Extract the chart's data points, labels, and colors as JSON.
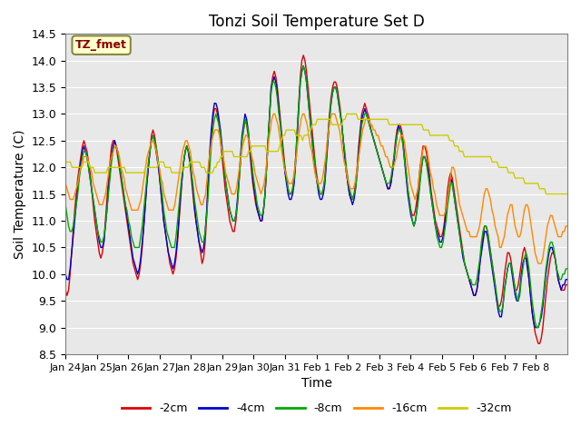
{
  "title": "Tonzi Soil Temperature Set D",
  "xlabel": "Time",
  "ylabel": "Soil Temperature (C)",
  "ylim": [
    8.5,
    14.5
  ],
  "yticks": [
    8.5,
    9.0,
    9.5,
    10.0,
    10.5,
    11.0,
    11.5,
    12.0,
    12.5,
    13.0,
    13.5,
    14.0,
    14.5
  ],
  "xtick_labels": [
    "Jan 24",
    "Jan 25",
    "Jan 26",
    "Jan 27",
    "Jan 28",
    "Jan 29",
    "Jan 30",
    "Jan 31",
    "Feb 1",
    "Feb 2",
    "Feb 3",
    "Feb 4",
    "Feb 5",
    "Feb 6",
    "Feb 7",
    "Feb 8"
  ],
  "line_colors": [
    "#dd0000",
    "#0000cc",
    "#00aa00",
    "#ff8800",
    "#cccc00"
  ],
  "line_labels": [
    "-2cm",
    "-4cm",
    "-8cm",
    "-16cm",
    "-32cm"
  ],
  "annotation_text": "TZ_fmet",
  "annotation_bg": "#ffffcc",
  "annotation_border": "#888844",
  "bg_color": "#e8e8e8",
  "figsize": [
    6.4,
    4.8
  ],
  "dpi": 100,
  "series_2cm": [
    9.7,
    9.6,
    9.7,
    10.0,
    10.4,
    10.8,
    11.2,
    11.5,
    11.8,
    12.0,
    12.2,
    12.4,
    12.5,
    12.4,
    12.3,
    12.1,
    11.9,
    11.6,
    11.3,
    11.0,
    10.8,
    10.6,
    10.4,
    10.3,
    10.4,
    10.6,
    11.0,
    11.4,
    11.8,
    12.1,
    12.4,
    12.5,
    12.5,
    12.4,
    12.2,
    12.0,
    11.8,
    11.6,
    11.4,
    11.2,
    11.0,
    10.8,
    10.6,
    10.4,
    10.2,
    10.1,
    10.0,
    9.9,
    10.0,
    10.2,
    10.5,
    10.9,
    11.3,
    11.7,
    12.0,
    12.3,
    12.6,
    12.7,
    12.6,
    12.4,
    12.2,
    11.9,
    11.6,
    11.3,
    11.0,
    10.8,
    10.6,
    10.4,
    10.2,
    10.1,
    10.0,
    10.1,
    10.3,
    10.6,
    11.0,
    11.4,
    11.8,
    12.1,
    12.3,
    12.4,
    12.3,
    12.1,
    11.8,
    11.5,
    11.2,
    11.0,
    10.8,
    10.6,
    10.4,
    10.2,
    10.3,
    10.6,
    11.1,
    11.7,
    12.2,
    12.6,
    12.9,
    13.1,
    13.1,
    13.0,
    12.8,
    12.5,
    12.2,
    11.9,
    11.6,
    11.4,
    11.2,
    11.0,
    10.9,
    10.8,
    10.8,
    11.0,
    11.3,
    11.7,
    12.1,
    12.5,
    12.7,
    12.9,
    12.8,
    12.6,
    12.3,
    12.0,
    11.7,
    11.5,
    11.3,
    11.2,
    11.1,
    11.0,
    11.0,
    11.2,
    11.5,
    12.0,
    12.5,
    13.0,
    13.5,
    13.7,
    13.8,
    13.7,
    13.5,
    13.2,
    12.9,
    12.6,
    12.3,
    12.0,
    11.8,
    11.6,
    11.5,
    11.5,
    11.6,
    11.8,
    12.2,
    12.7,
    13.2,
    13.7,
    14.0,
    14.1,
    14.0,
    13.8,
    13.5,
    13.2,
    12.9,
    12.6,
    12.3,
    12.0,
    11.8,
    11.6,
    11.5,
    11.5,
    11.6,
    11.8,
    12.2,
    12.6,
    13.0,
    13.3,
    13.5,
    13.6,
    13.6,
    13.5,
    13.3,
    13.1,
    12.8,
    12.5,
    12.2,
    11.9,
    11.7,
    11.5,
    11.4,
    11.4,
    11.5,
    11.7,
    12.0,
    12.4,
    12.7,
    13.0,
    13.1,
    13.2,
    13.1,
    13.0,
    12.9,
    12.7,
    12.6,
    12.5,
    12.4,
    12.3,
    12.2,
    12.1,
    12.0,
    11.9,
    11.8,
    11.7,
    11.6,
    11.6,
    11.7,
    11.9,
    12.2,
    12.5,
    12.7,
    12.8,
    12.8,
    12.7,
    12.5,
    12.2,
    11.9,
    11.6,
    11.4,
    11.2,
    11.1,
    11.1,
    11.2,
    11.4,
    11.7,
    12.0,
    12.2,
    12.4,
    12.4,
    12.3,
    12.1,
    11.9,
    11.6,
    11.4,
    11.2,
    11.0,
    10.9,
    10.8,
    10.7,
    10.7,
    10.8,
    11.0,
    11.3,
    11.6,
    11.8,
    11.9,
    11.8,
    11.6,
    11.4,
    11.2,
    11.0,
    10.8,
    10.6,
    10.4,
    10.2,
    10.1,
    10.0,
    9.9,
    9.8,
    9.7,
    9.6,
    9.6,
    9.7,
    9.9,
    10.2,
    10.5,
    10.7,
    10.9,
    10.9,
    10.8,
    10.6,
    10.4,
    10.2,
    10.0,
    9.8,
    9.5,
    9.4,
    9.4,
    9.5,
    9.7,
    10.0,
    10.2,
    10.4,
    10.4,
    10.3,
    10.1,
    9.9,
    9.7,
    9.7,
    9.8,
    10.0,
    10.2,
    10.4,
    10.5,
    10.4,
    10.2,
    9.9,
    9.6,
    9.3,
    9.1,
    8.9,
    8.8,
    8.7,
    8.7,
    8.8,
    9.0,
    9.3,
    9.6,
    9.9,
    10.1,
    10.3,
    10.4,
    10.4,
    10.3,
    10.1,
    9.9,
    9.8,
    9.7,
    9.7,
    9.7,
    9.8,
    9.8
  ],
  "series_4cm": [
    10.0,
    9.9,
    9.9,
    10.1,
    10.4,
    10.7,
    11.0,
    11.3,
    11.6,
    11.9,
    12.1,
    12.3,
    12.4,
    12.3,
    12.2,
    12.0,
    11.8,
    11.6,
    11.4,
    11.2,
    11.0,
    10.8,
    10.6,
    10.5,
    10.5,
    10.6,
    10.9,
    11.2,
    11.6,
    11.9,
    12.2,
    12.4,
    12.5,
    12.4,
    12.3,
    12.1,
    11.9,
    11.7,
    11.5,
    11.3,
    11.1,
    10.9,
    10.7,
    10.5,
    10.3,
    10.2,
    10.1,
    10.0,
    10.1,
    10.3,
    10.6,
    10.9,
    11.3,
    11.7,
    12.0,
    12.3,
    12.5,
    12.6,
    12.5,
    12.3,
    12.1,
    11.9,
    11.6,
    11.3,
    11.0,
    10.8,
    10.6,
    10.4,
    10.3,
    10.2,
    10.1,
    10.2,
    10.4,
    10.7,
    11.1,
    11.5,
    11.8,
    12.1,
    12.3,
    12.4,
    12.3,
    12.1,
    11.9,
    11.6,
    11.3,
    11.0,
    10.8,
    10.6,
    10.5,
    10.4,
    10.5,
    10.8,
    11.2,
    11.8,
    12.3,
    12.7,
    13.0,
    13.2,
    13.2,
    13.1,
    12.9,
    12.7,
    12.4,
    12.1,
    11.8,
    11.6,
    11.4,
    11.2,
    11.1,
    11.0,
    11.0,
    11.1,
    11.4,
    11.8,
    12.2,
    12.6,
    12.8,
    13.0,
    12.9,
    12.7,
    12.4,
    12.1,
    11.8,
    11.6,
    11.4,
    11.2,
    11.1,
    11.0,
    11.0,
    11.2,
    11.5,
    12.0,
    12.5,
    13.0,
    13.5,
    13.6,
    13.7,
    13.6,
    13.4,
    13.1,
    12.8,
    12.5,
    12.2,
    11.9,
    11.7,
    11.5,
    11.4,
    11.4,
    11.5,
    11.7,
    12.1,
    12.6,
    13.1,
    13.6,
    13.8,
    13.9,
    13.8,
    13.6,
    13.3,
    13.0,
    12.7,
    12.4,
    12.1,
    11.9,
    11.7,
    11.5,
    11.4,
    11.4,
    11.5,
    11.7,
    12.1,
    12.5,
    12.9,
    13.2,
    13.4,
    13.5,
    13.5,
    13.4,
    13.2,
    13.0,
    12.8,
    12.5,
    12.2,
    11.9,
    11.7,
    11.5,
    11.4,
    11.3,
    11.4,
    11.6,
    11.9,
    12.3,
    12.6,
    12.9,
    13.0,
    13.1,
    13.0,
    12.9,
    12.8,
    12.7,
    12.6,
    12.5,
    12.4,
    12.3,
    12.2,
    12.1,
    12.0,
    11.9,
    11.8,
    11.7,
    11.6,
    11.6,
    11.7,
    11.9,
    12.1,
    12.4,
    12.6,
    12.8,
    12.7,
    12.6,
    12.4,
    12.1,
    11.8,
    11.5,
    11.3,
    11.1,
    11.0,
    10.9,
    11.0,
    11.2,
    11.5,
    11.8,
    12.0,
    12.2,
    12.2,
    12.1,
    12.0,
    11.8,
    11.5,
    11.3,
    11.1,
    10.9,
    10.8,
    10.7,
    10.6,
    10.6,
    10.7,
    10.9,
    11.2,
    11.4,
    11.6,
    11.8,
    11.7,
    11.5,
    11.3,
    11.1,
    10.9,
    10.7,
    10.5,
    10.3,
    10.2,
    10.1,
    10.0,
    9.9,
    9.8,
    9.7,
    9.6,
    9.6,
    9.7,
    9.9,
    10.2,
    10.4,
    10.6,
    10.8,
    10.8,
    10.7,
    10.5,
    10.3,
    10.1,
    9.9,
    9.7,
    9.5,
    9.3,
    9.2,
    9.2,
    9.4,
    9.7,
    9.9,
    10.1,
    10.2,
    10.2,
    10.0,
    9.8,
    9.6,
    9.5,
    9.5,
    9.7,
    10.0,
    10.2,
    10.3,
    10.3,
    10.1,
    9.9,
    9.6,
    9.3,
    9.1,
    9.0,
    9.0,
    9.0,
    9.1,
    9.2,
    9.4,
    9.7,
    10.0,
    10.2,
    10.4,
    10.5,
    10.5,
    10.4,
    10.3,
    10.1,
    9.9,
    9.8,
    9.7,
    9.8,
    9.8,
    9.9,
    9.9
  ],
  "series_8cm": [
    11.3,
    11.1,
    10.9,
    10.8,
    10.8,
    10.9,
    11.1,
    11.3,
    11.5,
    11.8,
    12.0,
    12.2,
    12.3,
    12.3,
    12.2,
    12.0,
    11.8,
    11.6,
    11.4,
    11.2,
    11.0,
    10.8,
    10.7,
    10.6,
    10.6,
    10.7,
    10.9,
    11.2,
    11.5,
    11.8,
    12.1,
    12.3,
    12.4,
    12.4,
    12.3,
    12.1,
    11.9,
    11.7,
    11.5,
    11.3,
    11.2,
    11.0,
    10.9,
    10.7,
    10.6,
    10.5,
    10.5,
    10.5,
    10.5,
    10.7,
    10.9,
    11.2,
    11.5,
    11.8,
    12.1,
    12.3,
    12.5,
    12.6,
    12.5,
    12.4,
    12.2,
    12.0,
    11.7,
    11.5,
    11.2,
    11.0,
    10.8,
    10.7,
    10.6,
    10.5,
    10.5,
    10.5,
    10.7,
    11.0,
    11.3,
    11.6,
    11.9,
    12.1,
    12.3,
    12.4,
    12.3,
    12.2,
    11.9,
    11.7,
    11.4,
    11.2,
    11.0,
    10.8,
    10.7,
    10.6,
    10.6,
    10.8,
    11.1,
    11.5,
    12.0,
    12.4,
    12.7,
    12.9,
    13.0,
    12.9,
    12.8,
    12.6,
    12.3,
    12.1,
    11.8,
    11.6,
    11.4,
    11.2,
    11.1,
    11.0,
    11.0,
    11.1,
    11.3,
    11.7,
    12.1,
    12.5,
    12.7,
    12.9,
    12.8,
    12.7,
    12.4,
    12.2,
    11.9,
    11.7,
    11.5,
    11.3,
    11.2,
    11.1,
    11.1,
    11.2,
    11.5,
    12.0,
    12.5,
    13.0,
    13.4,
    13.6,
    13.6,
    13.5,
    13.3,
    13.0,
    12.8,
    12.5,
    12.2,
    12.0,
    11.8,
    11.6,
    11.5,
    11.5,
    11.6,
    11.8,
    12.2,
    12.7,
    13.2,
    13.6,
    13.8,
    13.9,
    13.8,
    13.6,
    13.3,
    13.0,
    12.7,
    12.4,
    12.2,
    11.9,
    11.7,
    11.6,
    11.5,
    11.5,
    11.6,
    11.8,
    12.2,
    12.6,
    12.9,
    13.2,
    13.4,
    13.5,
    13.5,
    13.4,
    13.2,
    13.0,
    12.8,
    12.5,
    12.3,
    12.0,
    11.8,
    11.6,
    11.5,
    11.4,
    11.5,
    11.6,
    11.9,
    12.2,
    12.5,
    12.8,
    12.9,
    13.0,
    13.0,
    12.9,
    12.8,
    12.7,
    12.6,
    12.5,
    12.4,
    12.3,
    12.2,
    12.1,
    12.0,
    11.9,
    11.8,
    11.7,
    11.7,
    11.7,
    11.8,
    12.0,
    12.2,
    12.4,
    12.6,
    12.7,
    12.7,
    12.6,
    12.4,
    12.1,
    11.9,
    11.6,
    11.4,
    11.2,
    11.0,
    10.9,
    11.0,
    11.2,
    11.4,
    11.7,
    12.0,
    12.2,
    12.2,
    12.1,
    11.9,
    11.7,
    11.5,
    11.3,
    11.1,
    10.9,
    10.7,
    10.6,
    10.5,
    10.5,
    10.6,
    10.8,
    11.0,
    11.3,
    11.5,
    11.7,
    11.7,
    11.5,
    11.3,
    11.1,
    10.9,
    10.7,
    10.5,
    10.4,
    10.2,
    10.1,
    10.0,
    9.9,
    9.9,
    9.8,
    9.8,
    9.8,
    9.9,
    10.1,
    10.3,
    10.6,
    10.8,
    10.9,
    10.9,
    10.8,
    10.6,
    10.4,
    10.2,
    10.0,
    9.8,
    9.6,
    9.4,
    9.3,
    9.3,
    9.4,
    9.7,
    9.9,
    10.1,
    10.2,
    10.2,
    10.1,
    9.9,
    9.7,
    9.6,
    9.5,
    9.6,
    9.9,
    10.1,
    10.3,
    10.4,
    10.3,
    10.1,
    9.8,
    9.5,
    9.3,
    9.1,
    9.0,
    9.0,
    9.1,
    9.3,
    9.5,
    9.8,
    10.1,
    10.3,
    10.5,
    10.6,
    10.6,
    10.5,
    10.3,
    10.1,
    10.0,
    9.9,
    9.9,
    10.0,
    10.0,
    10.1,
    10.1
  ],
  "series_16cm": [
    11.7,
    11.6,
    11.5,
    11.4,
    11.4,
    11.4,
    11.5,
    11.6,
    11.7,
    11.9,
    12.0,
    12.1,
    12.2,
    12.2,
    12.2,
    12.1,
    12.0,
    11.9,
    11.7,
    11.6,
    11.5,
    11.4,
    11.3,
    11.3,
    11.3,
    11.4,
    11.5,
    11.7,
    11.9,
    12.1,
    12.2,
    12.3,
    12.4,
    12.4,
    12.3,
    12.2,
    12.0,
    11.9,
    11.8,
    11.6,
    11.5,
    11.4,
    11.3,
    11.2,
    11.2,
    11.2,
    11.2,
    11.2,
    11.3,
    11.4,
    11.6,
    11.8,
    12.0,
    12.2,
    12.3,
    12.4,
    12.5,
    12.5,
    12.4,
    12.3,
    12.1,
    12.0,
    11.8,
    11.7,
    11.5,
    11.4,
    11.3,
    11.2,
    11.2,
    11.2,
    11.2,
    11.3,
    11.5,
    11.7,
    11.9,
    12.1,
    12.3,
    12.4,
    12.5,
    12.5,
    12.4,
    12.3,
    12.1,
    11.9,
    11.8,
    11.6,
    11.5,
    11.4,
    11.3,
    11.3,
    11.4,
    11.5,
    11.8,
    12.1,
    12.3,
    12.5,
    12.6,
    12.7,
    12.7,
    12.7,
    12.6,
    12.4,
    12.3,
    12.1,
    11.9,
    11.8,
    11.7,
    11.6,
    11.5,
    11.5,
    11.5,
    11.6,
    11.8,
    12.0,
    12.2,
    12.4,
    12.5,
    12.6,
    12.6,
    12.5,
    12.4,
    12.2,
    12.1,
    11.9,
    11.8,
    11.7,
    11.6,
    11.5,
    11.6,
    11.7,
    11.9,
    12.2,
    12.5,
    12.7,
    12.9,
    13.0,
    13.0,
    12.9,
    12.8,
    12.6,
    12.4,
    12.2,
    12.0,
    11.9,
    11.8,
    11.7,
    11.7,
    11.7,
    11.8,
    12.0,
    12.2,
    12.5,
    12.7,
    12.9,
    13.0,
    13.0,
    12.9,
    12.8,
    12.6,
    12.4,
    12.3,
    12.1,
    11.9,
    11.8,
    11.7,
    11.7,
    11.7,
    11.8,
    12.0,
    12.2,
    12.5,
    12.7,
    12.9,
    13.0,
    13.0,
    13.0,
    12.9,
    12.8,
    12.7,
    12.5,
    12.3,
    12.1,
    12.0,
    11.8,
    11.7,
    11.6,
    11.6,
    11.6,
    11.7,
    11.9,
    12.1,
    12.3,
    12.5,
    12.7,
    12.8,
    12.9,
    12.9,
    12.9,
    12.8,
    12.8,
    12.7,
    12.7,
    12.6,
    12.6,
    12.5,
    12.4,
    12.4,
    12.3,
    12.2,
    12.2,
    12.1,
    12.0,
    12.0,
    12.0,
    12.1,
    12.2,
    12.4,
    12.5,
    12.6,
    12.6,
    12.5,
    12.3,
    12.1,
    11.9,
    11.7,
    11.6,
    11.5,
    11.4,
    11.5,
    11.6,
    11.9,
    12.1,
    12.3,
    12.4,
    12.4,
    12.3,
    12.1,
    11.9,
    11.8,
    11.6,
    11.5,
    11.3,
    11.2,
    11.1,
    11.1,
    11.1,
    11.1,
    11.2,
    11.4,
    11.6,
    11.8,
    12.0,
    12.0,
    11.9,
    11.7,
    11.5,
    11.3,
    11.2,
    11.1,
    11.0,
    10.9,
    10.8,
    10.8,
    10.7,
    10.7,
    10.7,
    10.7,
    10.7,
    10.8,
    10.9,
    11.1,
    11.3,
    11.5,
    11.6,
    11.6,
    11.5,
    11.4,
    11.2,
    11.1,
    10.9,
    10.8,
    10.7,
    10.5,
    10.5,
    10.6,
    10.7,
    10.9,
    11.1,
    11.2,
    11.3,
    11.3,
    11.1,
    10.9,
    10.8,
    10.7,
    10.7,
    10.8,
    11.0,
    11.2,
    11.3,
    11.3,
    11.2,
    11.0,
    10.8,
    10.6,
    10.4,
    10.3,
    10.2,
    10.2,
    10.2,
    10.3,
    10.5,
    10.7,
    10.9,
    11.0,
    11.1,
    11.1,
    11.0,
    10.9,
    10.8,
    10.7,
    10.7,
    10.7,
    10.8,
    10.8,
    10.9,
    10.9
  ],
  "series_32cm": [
    12.1,
    12.1,
    12.1,
    12.1,
    12.0,
    12.0,
    12.0,
    12.0,
    12.0,
    12.0,
    12.0,
    12.1,
    12.1,
    12.1,
    12.1,
    12.0,
    12.0,
    12.0,
    11.9,
    11.9,
    11.9,
    11.9,
    11.9,
    11.9,
    11.9,
    11.9,
    12.0,
    12.0,
    12.0,
    12.0,
    12.0,
    12.0,
    12.0,
    12.0,
    12.0,
    12.0,
    12.0,
    11.9,
    11.9,
    11.9,
    11.9,
    11.9,
    11.9,
    11.9,
    11.9,
    11.9,
    11.9,
    11.9,
    11.9,
    12.0,
    12.0,
    12.0,
    12.0,
    12.0,
    12.0,
    12.0,
    12.0,
    12.1,
    12.1,
    12.1,
    12.1,
    12.0,
    12.0,
    12.0,
    12.0,
    11.9,
    11.9,
    11.9,
    11.9,
    11.9,
    11.9,
    11.9,
    12.0,
    12.0,
    12.0,
    12.0,
    12.1,
    12.1,
    12.1,
    12.1,
    12.1,
    12.1,
    12.1,
    12.0,
    12.0,
    12.0,
    11.9,
    11.9,
    11.9,
    11.9,
    11.9,
    12.0,
    12.0,
    12.1,
    12.1,
    12.2,
    12.2,
    12.3,
    12.3,
    12.3,
    12.3,
    12.3,
    12.3,
    12.2,
    12.2,
    12.2,
    12.2,
    12.2,
    12.2,
    12.2,
    12.2,
    12.2,
    12.3,
    12.3,
    12.4,
    12.4,
    12.4,
    12.4,
    12.4,
    12.4,
    12.4,
    12.4,
    12.4,
    12.3,
    12.3,
    12.3,
    12.3,
    12.3,
    12.3,
    12.3,
    12.3,
    12.4,
    12.5,
    12.6,
    12.6,
    12.7,
    12.7,
    12.7,
    12.7,
    12.7,
    12.7,
    12.6,
    12.6,
    12.6,
    12.6,
    12.5,
    12.6,
    12.6,
    12.6,
    12.7,
    12.7,
    12.8,
    12.8,
    12.8,
    12.9,
    12.9,
    12.9,
    12.9,
    12.9,
    12.9,
    12.9,
    12.9,
    12.9,
    12.8,
    12.8,
    12.8,
    12.8,
    12.8,
    12.8,
    12.8,
    12.9,
    12.9,
    13.0,
    13.0,
    13.0,
    13.0,
    13.0,
    13.0,
    13.0,
    12.9,
    12.9,
    12.9,
    12.9,
    12.9,
    12.9,
    12.9,
    12.9,
    12.9,
    12.9,
    12.9,
    12.9,
    12.9,
    12.9,
    12.9,
    12.9,
    12.9,
    12.9,
    12.9,
    12.8,
    12.8,
    12.8,
    12.8,
    12.8,
    12.8,
    12.8,
    12.8,
    12.8,
    12.8,
    12.8,
    12.8,
    12.8,
    12.8,
    12.8,
    12.8,
    12.8,
    12.8,
    12.8,
    12.8,
    12.8,
    12.7,
    12.7,
    12.7,
    12.7,
    12.6,
    12.6,
    12.6,
    12.6,
    12.6,
    12.6,
    12.6,
    12.6,
    12.6,
    12.6,
    12.6,
    12.6,
    12.5,
    12.5,
    12.5,
    12.4,
    12.4,
    12.4,
    12.3,
    12.3,
    12.3,
    12.2,
    12.2,
    12.2,
    12.2,
    12.2,
    12.2,
    12.2,
    12.2,
    12.2,
    12.2,
    12.2,
    12.2,
    12.2,
    12.2,
    12.2,
    12.2,
    12.2,
    12.1,
    12.1,
    12.1,
    12.1,
    12.0,
    12.0,
    12.0,
    12.0,
    12.0,
    12.0,
    11.9,
    11.9,
    11.9,
    11.9,
    11.8,
    11.8,
    11.8,
    11.8,
    11.8,
    11.8,
    11.7,
    11.7,
    11.7,
    11.7,
    11.7,
    11.7,
    11.7,
    11.7,
    11.7,
    11.6,
    11.6,
    11.6,
    11.6,
    11.5,
    11.5,
    11.5,
    11.5,
    11.5,
    11.5,
    11.5,
    11.5,
    11.5,
    11.5,
    11.5,
    11.5,
    11.5,
    11.5
  ]
}
